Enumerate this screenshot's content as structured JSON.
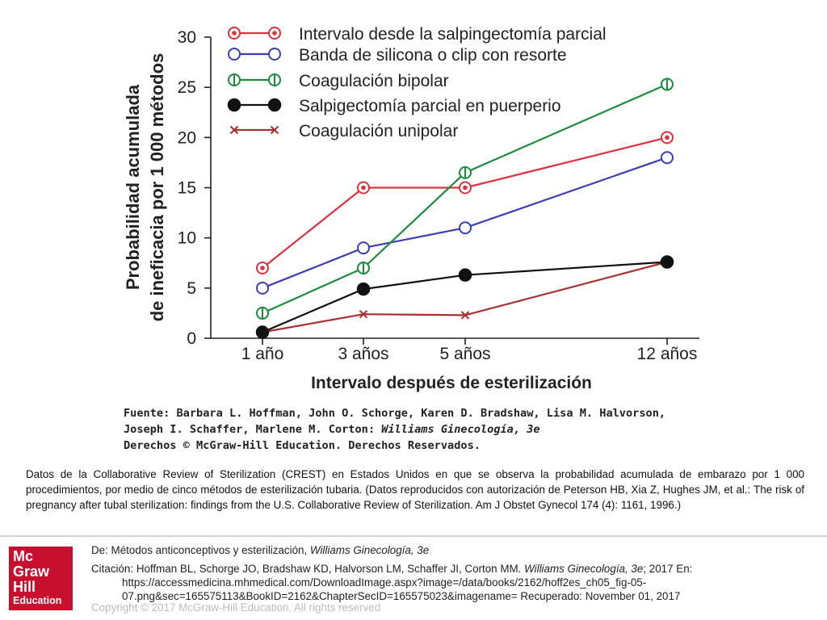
{
  "chart_data": {
    "type": "line",
    "title": "",
    "xlabel": "Intervalo después de esterilización",
    "ylabel_lines": [
      "Probabilidad acumulada",
      "de ineficacia por 1 000 métodos"
    ],
    "categories": [
      "1 año",
      "3 años",
      "5 años",
      "12 años"
    ],
    "y_ticks": [
      "0",
      "5",
      "10",
      "15",
      "20",
      "25",
      "30"
    ],
    "ylim": [
      0,
      30
    ],
    "grid": false,
    "legend_position": "top",
    "series": [
      {
        "name": "Intervalo desde la salpingectomía parcial",
        "color": "#e0303c",
        "marker": "dotted-circle",
        "values": [
          7,
          15,
          15,
          20
        ]
      },
      {
        "name": "Banda de silicona o clip con resorte",
        "color": "#3a3fb3",
        "marker": "open-circle",
        "values": [
          5,
          9,
          11,
          18
        ]
      },
      {
        "name": "Coagulación bipolar",
        "color": "#1a8c3c",
        "marker": "barred-circle",
        "values": [
          2.5,
          7,
          16.5,
          25.3
        ]
      },
      {
        "name": "Salpigectomía parcial en puerperio",
        "color": "#111111",
        "marker": "filled-circle",
        "values": [
          0.6,
          4.9,
          6.3,
          7.6
        ]
      },
      {
        "name": "Coagulación unipolar",
        "color": "#a83232",
        "marker": "x",
        "values": [
          0.6,
          2.4,
          2.3,
          7.6
        ]
      }
    ]
  },
  "source": {
    "line1": "Fuente: Barbara L. Hoffman, John O. Schorge, Karen D. Bradshaw, Lisa M. Halvorson,",
    "line2_prefix": "Joseph I. Schaffer, Marlene M. Corton: ",
    "line2_book": "Williams Ginecología, 3e",
    "line3": "Derechos © McGraw-Hill Education. Derechos Reservados."
  },
  "caption": "Datos de la Collaborative Review of Sterilization (CREST) en Estados Unidos en que se observa la probabilidad acumulada de embarazo por 1 000 procedimientos, por medio de cinco métodos de esterilización tubaria. (Datos reproducidos con autorización de Peterson HB, Xia Z, Hughes JM, et al.: The risk of pregnancy after tubal sterilization: findings from the U.S. Collaborative Review of Sterilization. Am J Obstet Gynecol 174 (4): 1161, 1996.)",
  "logo": {
    "line1": "Mc",
    "line2": "Graw",
    "line3": "Hill",
    "line4": "Education"
  },
  "footer": {
    "from_prefix": "De: Métodos anticonceptivos y esterilización, ",
    "from_book": "Williams Ginecología, 3e",
    "citation_prefix": "Citación: Hoffman BL, Schorge JO, Bradshaw KD, Halvorson LM, Schaffer JI, Corton MM. ",
    "citation_book": "Williams Ginecología, 3e",
    "citation_suffix": "; 2017 En:",
    "citation_url1": "https://accessmedicina.mhmedical.com/DownloadImage.aspx?image=/data/books/2162/hoff2es_ch05_fig-05-",
    "citation_url2": "07.png&sec=165575113&BookID=2162&ChapterSecID=165575023&imagename= Recuperado: November 01, 2017",
    "copyright": "Copyright © 2017 McGraw-Hill Education. All rights reserved"
  }
}
